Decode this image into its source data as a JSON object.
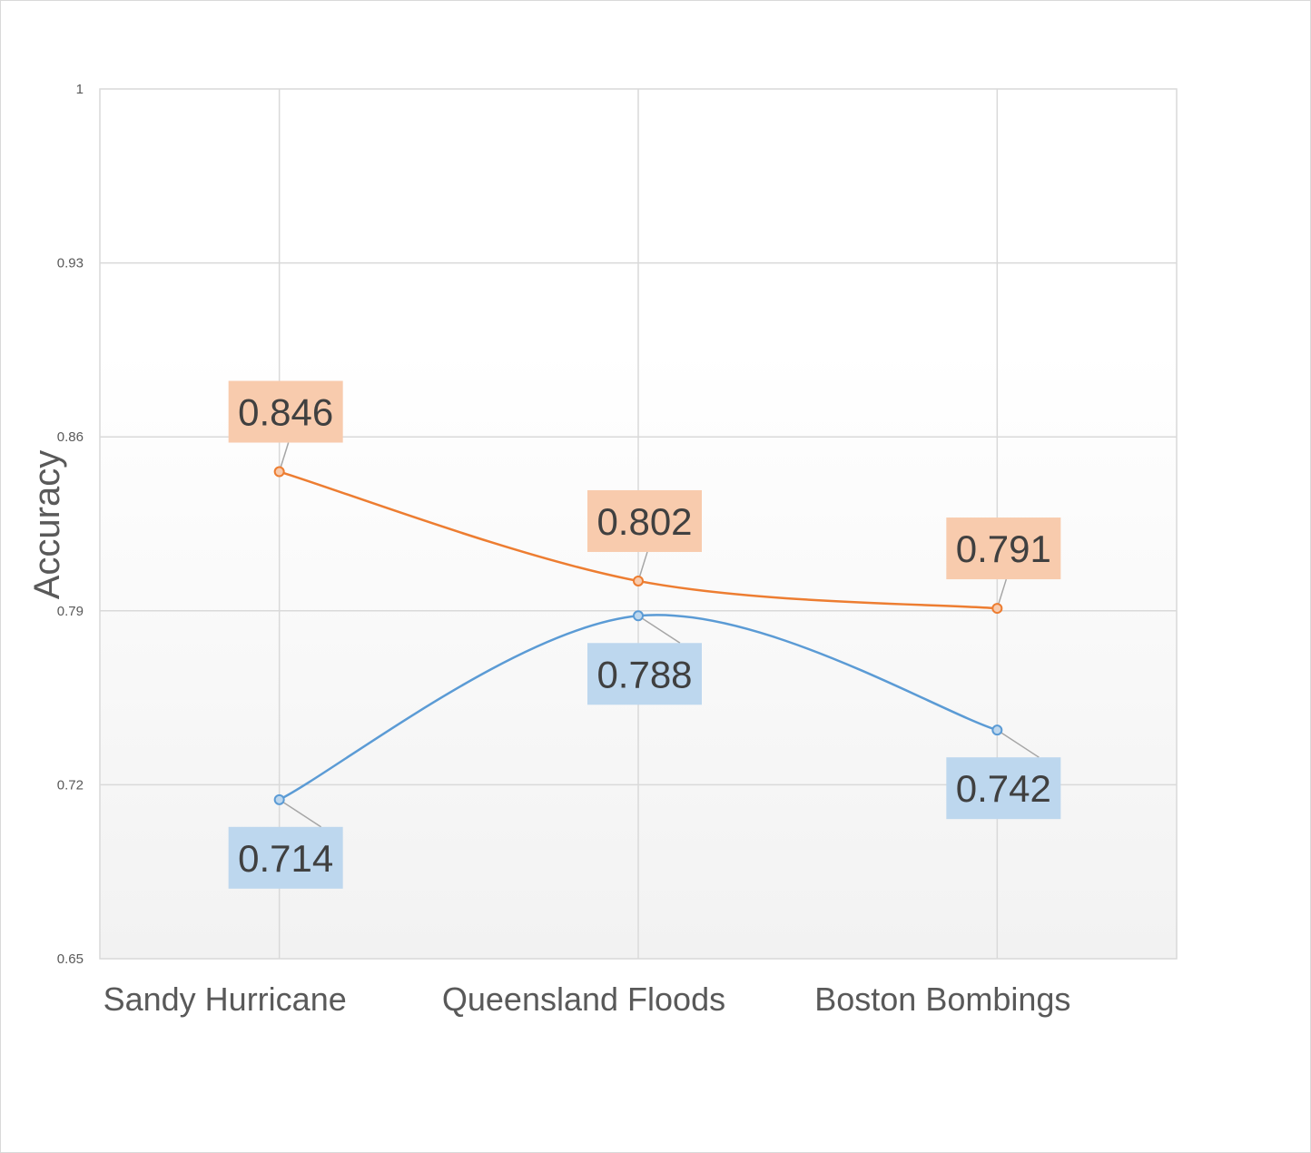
{
  "chart_data": {
    "type": "line",
    "title": "",
    "xlabel": "",
    "ylabel": "Accuracy",
    "categories": [
      "Sandy Hurricane",
      "Queensland Floods",
      "Boston Bombings"
    ],
    "ylim": [
      0.65,
      1
    ],
    "yticks": [
      "0.65",
      "0.72",
      "0.79",
      "0.86",
      "0.93",
      "1"
    ],
    "grid": true,
    "smooth": true,
    "series": [
      {
        "values": [
          0.846,
          0.802,
          0.791
        ],
        "labels": [
          "0.846",
          "0.802",
          "0.791"
        ],
        "color": "#ed7d31",
        "label_bg": "#f8cbad",
        "label_position": "above"
      },
      {
        "values": [
          0.714,
          0.788,
          0.742
        ],
        "labels": [
          "0.714",
          "0.788",
          "0.742"
        ],
        "color": "#5b9bd5",
        "label_bg": "#bdd7ee",
        "label_position": "below"
      }
    ]
  }
}
